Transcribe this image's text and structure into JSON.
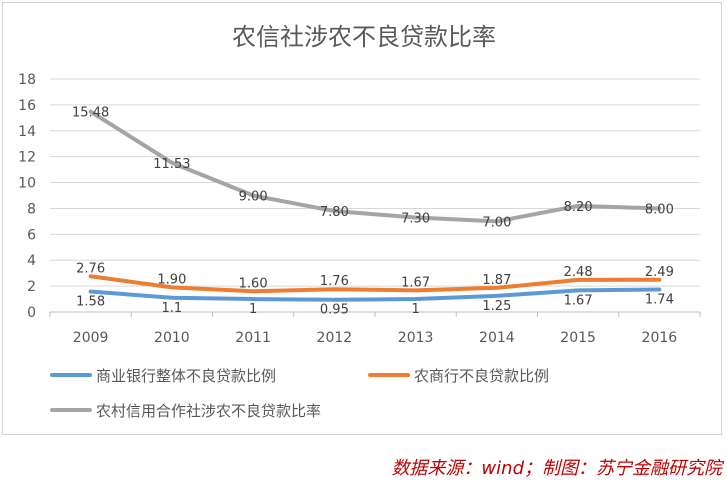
{
  "chart_data": {
    "type": "line",
    "title": "农信社涉农不良贷款比率",
    "xlabel": "",
    "ylabel": "",
    "categories": [
      "2009",
      "2010",
      "2011",
      "2012",
      "2013",
      "2014",
      "2015",
      "2016"
    ],
    "ylim": [
      0,
      18
    ],
    "yticks": [
      0,
      2,
      4,
      6,
      8,
      10,
      12,
      14,
      16,
      18
    ],
    "grid": true,
    "legend_position": "bottom",
    "series": [
      {
        "name": "商业银行整体不良贷款比例",
        "color": "#5B9BD5",
        "values": [
          1.58,
          1.1,
          1,
          0.95,
          1,
          1.25,
          1.67,
          1.74
        ],
        "labels": [
          "1.58",
          "1.1",
          "1",
          "0.95",
          "1",
          "1.25",
          "1.67",
          "1.74"
        ]
      },
      {
        "name": "农商行不良贷款比例",
        "color": "#ED7D31",
        "values": [
          2.76,
          1.9,
          1.6,
          1.76,
          1.67,
          1.87,
          2.48,
          2.49
        ],
        "labels": [
          "2.76",
          "1.90",
          "1.60",
          "1.76",
          "1.67",
          "1.87",
          "2.48",
          "2.49"
        ]
      },
      {
        "name": "农村信用合作社涉农不良贷款比率",
        "color": "#A5A5A5",
        "values": [
          15.48,
          11.53,
          9.0,
          7.8,
          7.3,
          7.0,
          8.2,
          8.0
        ],
        "labels": [
          "15.48",
          "11.53",
          "9.00",
          "7.80",
          "7.30",
          "7.00",
          "8.20",
          "8.00"
        ]
      }
    ]
  },
  "source_note": "数据来源：wind；制图：苏宁金融研究院"
}
